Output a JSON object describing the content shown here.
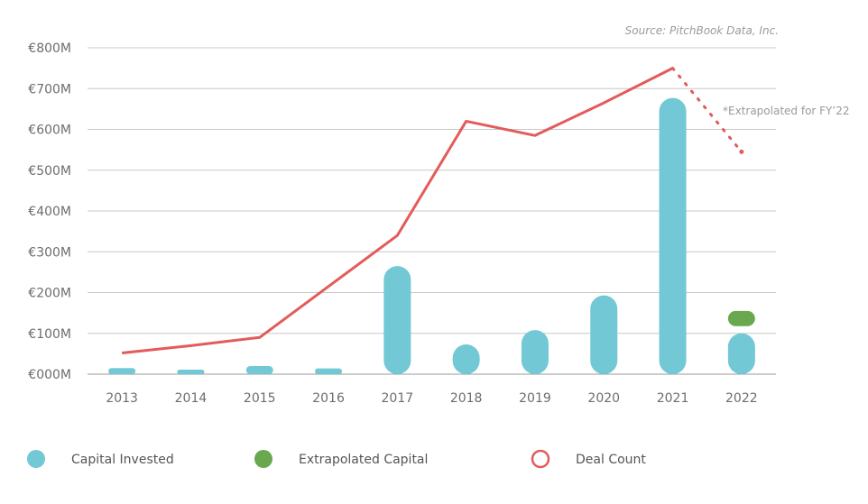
{
  "source": "Source: PitchBook Data, Inc.",
  "chart_data": {
    "type": "bar",
    "categories": [
      "2013",
      "2014",
      "2015",
      "2016",
      "2017",
      "2018",
      "2019",
      "2020",
      "2021",
      "2022"
    ],
    "y_ticks": [
      "€000M",
      "€100M",
      "€200M",
      "€300M",
      "€400M",
      "€500M",
      "€600M",
      "€700M",
      "€800M"
    ],
    "ylim": [
      0,
      800
    ],
    "grid": true,
    "legend_position": "bottom",
    "series": [
      {
        "name": "Capital Invested",
        "kind": "bar",
        "color": "#72c8d5",
        "values": [
          15,
          7,
          20,
          14,
          265,
          73,
          108,
          193,
          677,
          100
        ]
      },
      {
        "name": "Extrapolated Capital",
        "kind": "bar-stacked",
        "color": "#6aa84f",
        "values": [
          null,
          null,
          null,
          null,
          null,
          null,
          null,
          null,
          null,
          55
        ]
      },
      {
        "name": "Deal Count",
        "kind": "line",
        "color": "#e35b5a",
        "values": [
          52,
          70,
          90,
          215,
          340,
          620,
          585,
          665,
          750,
          545
        ]
      }
    ],
    "annotations": [
      "*Extrapolated for FY’22"
    ]
  }
}
